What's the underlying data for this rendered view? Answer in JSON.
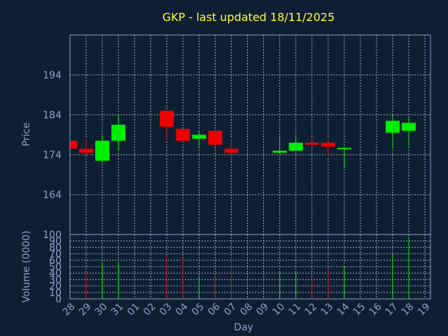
{
  "colors": {
    "background": "#0f1f33",
    "title": "#ffff33",
    "axis_text": "#8aa2c4",
    "up": "#00ee00",
    "down": "#ee0000"
  },
  "chart_data": {
    "type": "candlestick",
    "title": "GKP - last updated 18/11/2025",
    "xlabel": "Day",
    "price_panel": {
      "ylabel": "Price",
      "ylim": [
        154,
        204
      ],
      "yticks": [
        "164",
        "174",
        "184",
        "194"
      ]
    },
    "volume_panel": {
      "ylabel": "Volume (0000)",
      "ylim": [
        0,
        100
      ],
      "yticks": [
        "0",
        "10",
        "20",
        "30",
        "40",
        "50",
        "60",
        "70",
        "80",
        "90",
        "100"
      ]
    },
    "x_ticks": [
      "28",
      "29",
      "30",
      "31",
      "01",
      "02",
      "03",
      "04",
      "05",
      "06",
      "07",
      "08",
      "09",
      "10",
      "11",
      "12",
      "13",
      "14",
      "15",
      "16",
      "17",
      "18",
      "19"
    ],
    "grid": true,
    "candles": [
      {
        "day": "28",
        "open": 177.5,
        "high": 177.5,
        "low": 175.5,
        "close": 175.5,
        "volume": 0
      },
      {
        "day": "29",
        "open": 175.5,
        "high": 178.0,
        "low": 174.0,
        "close": 174.5,
        "volume": 41
      },
      {
        "day": "30",
        "open": 172.5,
        "high": 179.0,
        "low": 172.0,
        "close": 177.5,
        "volume": 57
      },
      {
        "day": "31",
        "open": 177.5,
        "high": 184.0,
        "low": 175.0,
        "close": 181.5,
        "volume": 57
      },
      {
        "day": "03",
        "open": 185.0,
        "high": 185.0,
        "low": 177.5,
        "close": 181.0,
        "volume": 66
      },
      {
        "day": "04",
        "open": 180.5,
        "high": 180.5,
        "low": 177.5,
        "close": 177.5,
        "volume": 63
      },
      {
        "day": "05",
        "open": 178.0,
        "high": 180.0,
        "low": 176.0,
        "close": 179.0,
        "volume": 36
      },
      {
        "day": "06",
        "open": 180.0,
        "high": 180.0,
        "low": 176.0,
        "close": 176.5,
        "volume": 33
      },
      {
        "day": "07",
        "open": 175.5,
        "high": 178.0,
        "low": 172.5,
        "close": 174.5,
        "volume": 65
      },
      {
        "day": "10",
        "open": 174.5,
        "high": 179.0,
        "low": 174.5,
        "close": 175.0,
        "volume": 42
      },
      {
        "day": "11",
        "open": 175.0,
        "high": 179.0,
        "low": 175.0,
        "close": 177.0,
        "volume": 43
      },
      {
        "day": "12",
        "open": 177.0,
        "high": 178.0,
        "low": 176.0,
        "close": 176.5,
        "volume": 30
      },
      {
        "day": "13",
        "open": 177.0,
        "high": 178.0,
        "low": 173.5,
        "close": 176.0,
        "volume": 45
      },
      {
        "day": "14",
        "open": 175.5,
        "high": 176.0,
        "low": 171.0,
        "close": 175.7,
        "volume": 50
      },
      {
        "day": "17",
        "open": 179.5,
        "high": 184.0,
        "low": 175.5,
        "close": 182.5,
        "volume": 69
      },
      {
        "day": "18",
        "open": 180.0,
        "high": 183.5,
        "low": 176.0,
        "close": 182.0,
        "volume": 96
      }
    ]
  }
}
